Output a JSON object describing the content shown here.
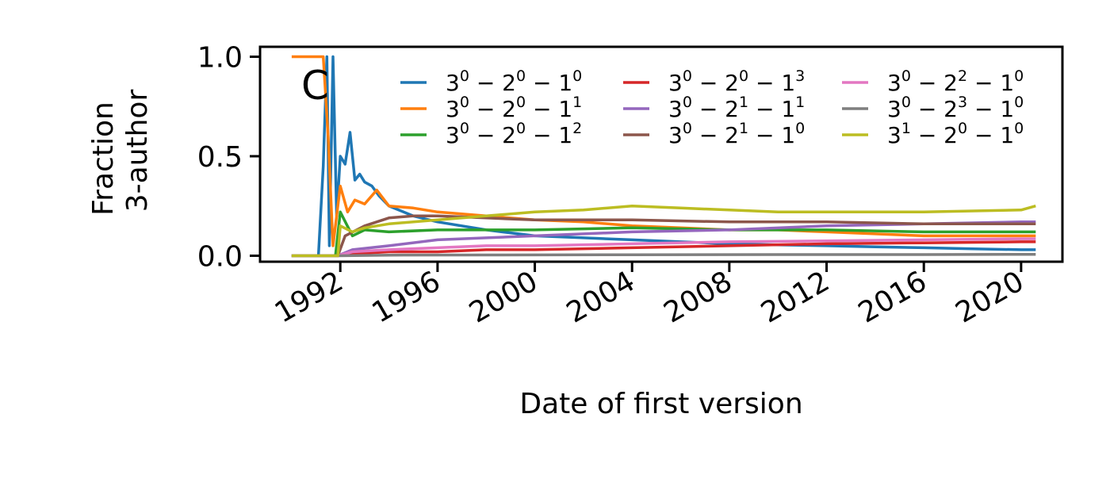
{
  "panel_label": "C",
  "chart_data": {
    "type": "line",
    "title": "",
    "xlabel": "Date of first version",
    "ylabel_lines": [
      "Fraction",
      "3-author"
    ],
    "xlim": [
      1988.7,
      2021.7
    ],
    "ylim": [
      -0.03,
      1.05
    ],
    "xticks": [
      1992,
      1996,
      2000,
      2004,
      2008,
      2012,
      2016,
      2020
    ],
    "yticks": [
      0.0,
      0.5,
      1.0
    ],
    "ytick_labels": [
      "0.0",
      "0.5",
      "1.0"
    ],
    "grid": false,
    "legend_position": "upper-right, 3 columns",
    "series": [
      {
        "name": "3^0 − 2^0 − 1^0",
        "base": "3",
        "mid": "2",
        "low": "1",
        "e1": "0",
        "e2": "0",
        "e3": "0",
        "color": "#1f77b4",
        "points": [
          [
            1990.0,
            0
          ],
          [
            1991.1,
            0
          ],
          [
            1991.3,
            0.45
          ],
          [
            1991.45,
            1.0
          ],
          [
            1991.55,
            0.05
          ],
          [
            1991.7,
            1.0
          ],
          [
            1991.85,
            0.2
          ],
          [
            1992.0,
            0.5
          ],
          [
            1992.2,
            0.46
          ],
          [
            1992.4,
            0.62
          ],
          [
            1992.6,
            0.38
          ],
          [
            1992.8,
            0.41
          ],
          [
            1993.0,
            0.37
          ],
          [
            1993.3,
            0.35
          ],
          [
            1993.6,
            0.3
          ],
          [
            1994,
            0.25
          ],
          [
            1995,
            0.2
          ],
          [
            1996,
            0.17
          ],
          [
            1998,
            0.13
          ],
          [
            2000,
            0.1
          ],
          [
            2002,
            0.09
          ],
          [
            2004,
            0.08
          ],
          [
            2006,
            0.07
          ],
          [
            2008,
            0.06
          ],
          [
            2010,
            0.055
          ],
          [
            2012,
            0.05
          ],
          [
            2014,
            0.045
          ],
          [
            2016,
            0.04
          ],
          [
            2018,
            0.035
          ],
          [
            2020,
            0.03
          ],
          [
            2020.6,
            0.03
          ]
        ]
      },
      {
        "name": "3^0 − 2^0 − 1^1",
        "base": "3",
        "mid": "2",
        "low": "1",
        "e1": "0",
        "e2": "0",
        "e3": "1",
        "color": "#ff7f0e",
        "points": [
          [
            1990.0,
            1.0
          ],
          [
            1991.3,
            1.0
          ],
          [
            1991.5,
            0.6
          ],
          [
            1991.7,
            0.05
          ],
          [
            1992.0,
            0.35
          ],
          [
            1992.3,
            0.22
          ],
          [
            1992.6,
            0.28
          ],
          [
            1993,
            0.26
          ],
          [
            1993.5,
            0.33
          ],
          [
            1994,
            0.25
          ],
          [
            1995,
            0.24
          ],
          [
            1996,
            0.22
          ],
          [
            1998,
            0.2
          ],
          [
            2000,
            0.18
          ],
          [
            2002,
            0.17
          ],
          [
            2004,
            0.15
          ],
          [
            2006,
            0.14
          ],
          [
            2008,
            0.13
          ],
          [
            2010,
            0.13
          ],
          [
            2012,
            0.12
          ],
          [
            2014,
            0.11
          ],
          [
            2016,
            0.1
          ],
          [
            2018,
            0.1
          ],
          [
            2020,
            0.1
          ],
          [
            2020.6,
            0.1
          ]
        ]
      },
      {
        "name": "3^0 − 2^0 − 1^2",
        "base": "3",
        "mid": "2",
        "low": "1",
        "e1": "0",
        "e2": "0",
        "e3": "2",
        "color": "#2ca02c",
        "points": [
          [
            1990.0,
            0
          ],
          [
            1991.8,
            0
          ],
          [
            1992.0,
            0.22
          ],
          [
            1992.5,
            0.1
          ],
          [
            1993,
            0.13
          ],
          [
            1994,
            0.12
          ],
          [
            1996,
            0.13
          ],
          [
            1998,
            0.13
          ],
          [
            2000,
            0.13
          ],
          [
            2004,
            0.14
          ],
          [
            2008,
            0.13
          ],
          [
            2012,
            0.13
          ],
          [
            2016,
            0.12
          ],
          [
            2020,
            0.12
          ],
          [
            2020.6,
            0.12
          ]
        ]
      },
      {
        "name": "3^0 − 2^0 − 1^3",
        "base": "3",
        "mid": "2",
        "low": "1",
        "e1": "0",
        "e2": "0",
        "e3": "3",
        "color": "#d62728",
        "points": [
          [
            1990.0,
            0
          ],
          [
            1991.9,
            0
          ],
          [
            1992.5,
            0.01
          ],
          [
            1994,
            0.02
          ],
          [
            1996,
            0.02
          ],
          [
            1998,
            0.03
          ],
          [
            2000,
            0.03
          ],
          [
            2004,
            0.04
          ],
          [
            2008,
            0.05
          ],
          [
            2012,
            0.06
          ],
          [
            2016,
            0.065
          ],
          [
            2020,
            0.07
          ],
          [
            2020.6,
            0.07
          ]
        ]
      },
      {
        "name": "3^0 − 2^1 − 1^1",
        "base": "3",
        "mid": "2",
        "low": "1",
        "e1": "0",
        "e2": "1",
        "e3": "1",
        "color": "#9467bd",
        "points": [
          [
            1990.0,
            0
          ],
          [
            1991.9,
            0
          ],
          [
            1992.5,
            0.03
          ],
          [
            1994,
            0.05
          ],
          [
            1996,
            0.08
          ],
          [
            1998,
            0.09
          ],
          [
            2000,
            0.1
          ],
          [
            2004,
            0.12
          ],
          [
            2008,
            0.13
          ],
          [
            2012,
            0.15
          ],
          [
            2016,
            0.16
          ],
          [
            2020,
            0.17
          ],
          [
            2020.6,
            0.17
          ]
        ]
      },
      {
        "name": "3^0 − 2^1 − 1^0",
        "base": "3",
        "mid": "2",
        "low": "1",
        "e1": "0",
        "e2": "1",
        "e3": "0",
        "color": "#8c564b",
        "points": [
          [
            1990.0,
            0
          ],
          [
            1991.9,
            0
          ],
          [
            1992.2,
            0.1
          ],
          [
            1993,
            0.15
          ],
          [
            1994,
            0.19
          ],
          [
            1995,
            0.2
          ],
          [
            1996,
            0.2
          ],
          [
            1998,
            0.19
          ],
          [
            2000,
            0.18
          ],
          [
            2004,
            0.18
          ],
          [
            2008,
            0.17
          ],
          [
            2012,
            0.17
          ],
          [
            2016,
            0.16
          ],
          [
            2020,
            0.16
          ],
          [
            2020.6,
            0.16
          ]
        ]
      },
      {
        "name": "3^0 − 2^2 − 1^0",
        "base": "3",
        "mid": "2",
        "low": "1",
        "e1": "0",
        "e2": "2",
        "e3": "0",
        "color": "#e377c2",
        "points": [
          [
            1990.0,
            0
          ],
          [
            1991.9,
            0
          ],
          [
            1992.5,
            0.02
          ],
          [
            1994,
            0.03
          ],
          [
            1996,
            0.04
          ],
          [
            1998,
            0.05
          ],
          [
            2000,
            0.05
          ],
          [
            2004,
            0.06
          ],
          [
            2008,
            0.07
          ],
          [
            2012,
            0.075
          ],
          [
            2016,
            0.08
          ],
          [
            2020,
            0.085
          ],
          [
            2020.6,
            0.085
          ]
        ]
      },
      {
        "name": "3^0 − 2^3 − 1^0",
        "base": "3",
        "mid": "2",
        "low": "1",
        "e1": "0",
        "e2": "3",
        "e3": "0",
        "color": "#7f7f7f",
        "points": [
          [
            1990.0,
            0
          ],
          [
            1991.9,
            0
          ],
          [
            1994,
            0.003
          ],
          [
            1998,
            0.004
          ],
          [
            2004,
            0.005
          ],
          [
            2010,
            0.006
          ],
          [
            2016,
            0.006
          ],
          [
            2020,
            0.007
          ],
          [
            2020.6,
            0.007
          ]
        ]
      },
      {
        "name": "3^1 − 2^0 − 1^0",
        "base": "3",
        "mid": "2",
        "low": "1",
        "e1": "1",
        "e2": "0",
        "e3": "0",
        "color": "#bcbd22",
        "points": [
          [
            1990.0,
            0
          ],
          [
            1991.9,
            0
          ],
          [
            1992.0,
            0.15
          ],
          [
            1992.5,
            0.12
          ],
          [
            1993,
            0.14
          ],
          [
            1994,
            0.16
          ],
          [
            1996,
            0.18
          ],
          [
            1998,
            0.2
          ],
          [
            2000,
            0.22
          ],
          [
            2002,
            0.23
          ],
          [
            2004,
            0.25
          ],
          [
            2006,
            0.24
          ],
          [
            2008,
            0.23
          ],
          [
            2010,
            0.22
          ],
          [
            2012,
            0.22
          ],
          [
            2016,
            0.22
          ],
          [
            2020,
            0.23
          ],
          [
            2020.6,
            0.25
          ]
        ]
      }
    ]
  }
}
